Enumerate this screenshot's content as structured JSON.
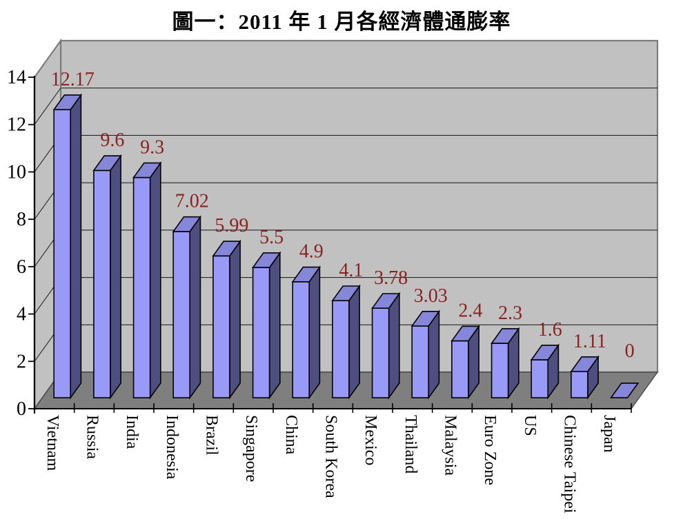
{
  "chart_data": {
    "type": "bar",
    "style": "3d-column",
    "title": "圖一：2011 年 1 月各經濟體通膨率",
    "xlabel": "",
    "ylabel": "",
    "ylim": [
      0,
      14
    ],
    "yticks": [
      "0",
      "2",
      "4",
      "6",
      "8",
      "10",
      "12",
      "14"
    ],
    "ytick_values": [
      0,
      2,
      4,
      6,
      8,
      10,
      12,
      14
    ],
    "grid": true,
    "legend": false,
    "value_labels_shown": true,
    "categories": [
      "Vietnam",
      "Russia",
      "India",
      "Indonesia",
      "Brazil",
      "Singapore",
      "China",
      "South Korea",
      "Mexico",
      "Thailand",
      "Malaysia",
      "Euro Zone",
      "US",
      "Chinese Taipei",
      "Japan"
    ],
    "values": [
      12.17,
      9.6,
      9.3,
      7.02,
      5.99,
      5.5,
      4.9,
      4.1,
      3.78,
      3.03,
      2.4,
      2.3,
      1.6,
      1.11,
      0
    ],
    "value_labels": [
      "12.17",
      "9.6",
      "9.3",
      "7.02",
      "5.99",
      "5.5",
      "4.9",
      "4.1",
      "3.78",
      "3.03",
      "2.4",
      "2.3",
      "1.6",
      "1.11",
      "0"
    ]
  },
  "colors": {
    "bar_front": "#9999F8",
    "bar_top": "#8787DA",
    "bar_side": "#4E4E80",
    "bar_outline": "#000000",
    "wall": "#C1C1C1",
    "wall_border": "#7B7B7B",
    "floor": "#7F7F7F",
    "floor_border": "#4A4A4A",
    "gridline": "#262626",
    "axis": "#000000",
    "value_label": "#8B2222",
    "axis_text": "#000000"
  }
}
